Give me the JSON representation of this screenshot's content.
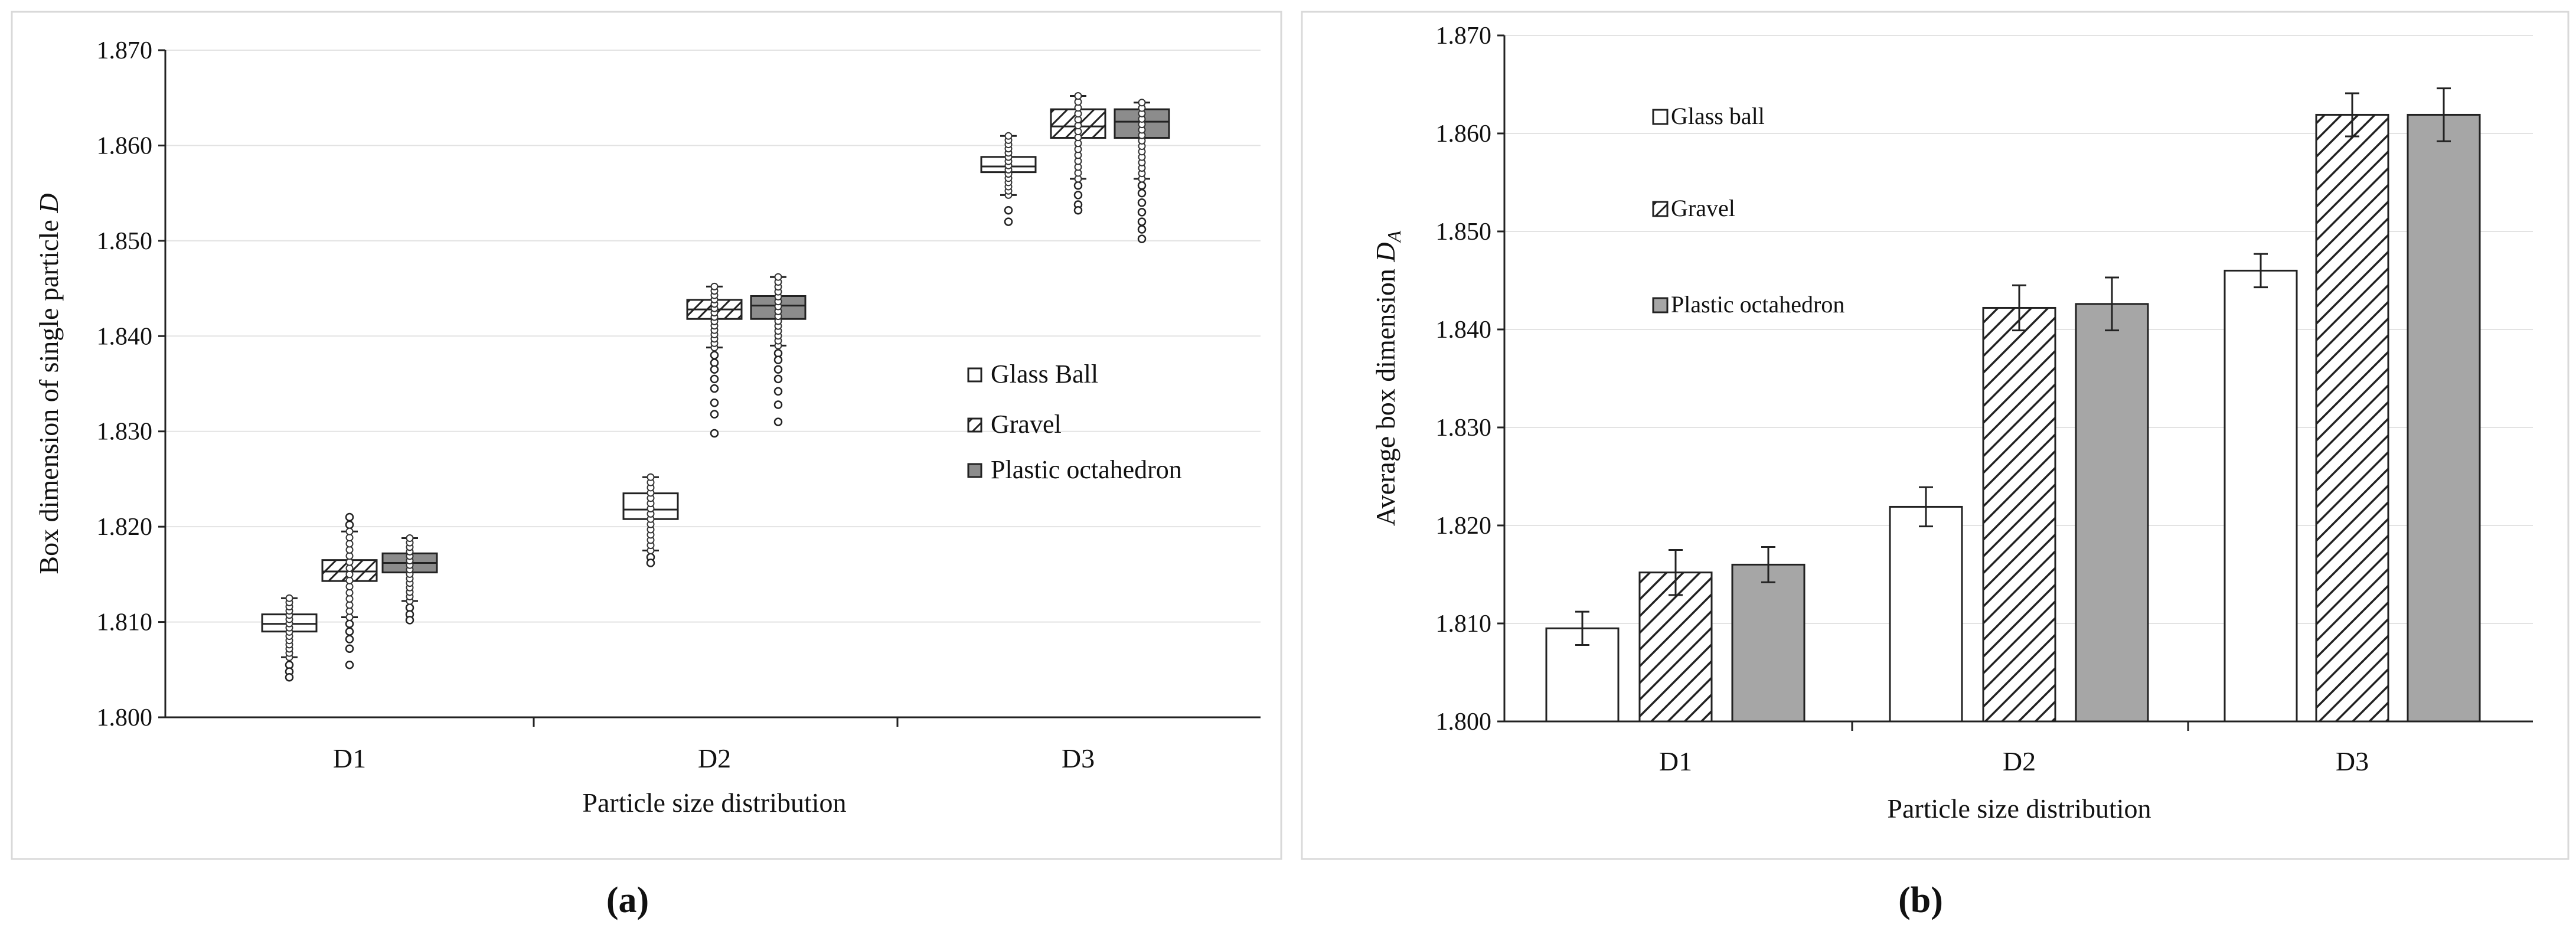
{
  "chart_data": [
    {
      "type": "box",
      "panel_label": "a",
      "title": "",
      "xlabel": "Particle size distribution",
      "ylabel_main": "Box dimension of single particle ",
      "ylabel_symbol": "D",
      "ylim": [
        1.8,
        1.87
      ],
      "yticks": [
        "1.800",
        "1.810",
        "1.820",
        "1.830",
        "1.840",
        "1.850",
        "1.860",
        "1.870"
      ],
      "categories": [
        "D1",
        "D2",
        "D3"
      ],
      "legend_position": "right",
      "series": [
        {
          "name": "Glass Ball",
          "fill": "white",
          "boxes": [
            {
              "q1": 1.809,
              "median": 1.8098,
              "q3": 1.8108,
              "whisker_low": 1.8063,
              "whisker_high": 1.8125,
              "outliers": [
                1.8055,
                1.8048,
                1.8042
              ]
            },
            {
              "q1": 1.8208,
              "median": 1.8218,
              "q3": 1.8235,
              "whisker_low": 1.8175,
              "whisker_high": 1.8252,
              "outliers": [
                1.8168,
                1.8162
              ]
            },
            {
              "q1": 1.8572,
              "median": 1.8578,
              "q3": 1.8588,
              "whisker_low": 1.8548,
              "whisker_high": 1.861,
              "outliers": [
                1.8532,
                1.852
              ]
            }
          ]
        },
        {
          "name": "Gravel",
          "fill": "hatched",
          "boxes": [
            {
              "q1": 1.8143,
              "median": 1.8153,
              "q3": 1.8165,
              "whisker_low": 1.8105,
              "whisker_high": 1.8195,
              "outliers": [
                1.8098,
                1.809,
                1.8082,
                1.8072,
                1.8055,
                1.8202,
                1.821
              ]
            },
            {
              "q1": 1.8418,
              "median": 1.8428,
              "q3": 1.8438,
              "whisker_low": 1.8388,
              "whisker_high": 1.8452,
              "outliers": [
                1.838,
                1.8372,
                1.8365,
                1.8355,
                1.8345,
                1.833,
                1.8318,
                1.8298
              ]
            },
            {
              "q1": 1.8608,
              "median": 1.862,
              "q3": 1.8638,
              "whisker_low": 1.8565,
              "whisker_high": 1.8652,
              "outliers": [
                1.8558,
                1.8548,
                1.8538,
                1.8532
              ]
            }
          ]
        },
        {
          "name": "Plastic octahedron",
          "fill": "gray",
          "boxes": [
            {
              "q1": 1.8152,
              "median": 1.8162,
              "q3": 1.8172,
              "whisker_low": 1.8122,
              "whisker_high": 1.8188,
              "outliers": [
                1.8115,
                1.8108,
                1.8102
              ]
            },
            {
              "q1": 1.8418,
              "median": 1.8432,
              "q3": 1.8442,
              "whisker_low": 1.839,
              "whisker_high": 1.8462,
              "outliers": [
                1.8382,
                1.8375,
                1.8365,
                1.8355,
                1.8342,
                1.8328,
                1.831
              ]
            },
            {
              "q1": 1.8608,
              "median": 1.8625,
              "q3": 1.8638,
              "whisker_low": 1.8565,
              "whisker_high": 1.8645,
              "outliers": [
                1.8558,
                1.855,
                1.854,
                1.853,
                1.852,
                1.8512,
                1.8502
              ]
            }
          ]
        }
      ]
    },
    {
      "type": "bar",
      "panel_label": "b",
      "title": "",
      "xlabel": "Particle size distribution",
      "ylabel_main": "Average box dimension ",
      "ylabel_symbol": "D",
      "ylabel_sub": "A",
      "ylim": [
        1.8,
        1.87
      ],
      "yticks": [
        "1.800",
        "1.810",
        "1.820",
        "1.830",
        "1.840",
        "1.850",
        "1.860",
        "1.870"
      ],
      "categories": [
        "D1",
        "D2",
        "D3"
      ],
      "legend_position": "top-left",
      "series": [
        {
          "name": "Glass ball",
          "fill": "white",
          "values": [
            1.8095,
            1.8219,
            1.846
          ],
          "errors": [
            0.0017,
            0.002,
            0.0017
          ]
        },
        {
          "name": "Gravel",
          "fill": "hatched",
          "values": [
            1.8152,
            1.8422,
            1.8619
          ],
          "errors": [
            0.0023,
            0.0023,
            0.0022
          ]
        },
        {
          "name": "Plastic octahedron",
          "fill": "gray",
          "values": [
            1.816,
            1.8426,
            1.8619
          ],
          "errors": [
            0.0018,
            0.0027,
            0.0027
          ]
        }
      ]
    }
  ],
  "captions": {
    "a": "(a)",
    "b": "(b)"
  }
}
